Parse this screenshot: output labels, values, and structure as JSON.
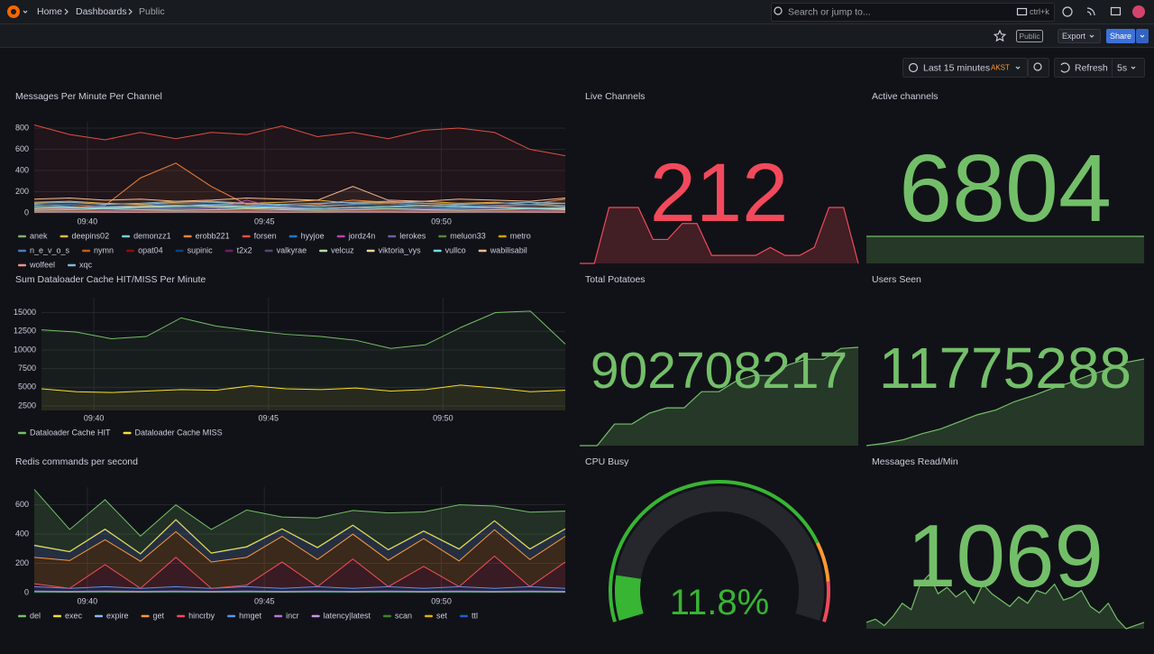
{
  "header": {
    "breadcrumbs": [
      "Home",
      "Dashboards",
      "Public"
    ],
    "search": "Search or jump to...",
    "shortcut": "ctrl+k",
    "badge": "Public",
    "export": "Export",
    "share": "Share"
  },
  "toolbar": {
    "time_range": "Last 15 minutes",
    "timezone": "AKST",
    "refresh": "Refresh",
    "interval": "5s"
  },
  "panels": [
    {
      "type": "timeseries",
      "title": "Messages Per Minute Per Channel",
      "x": [
        38.5,
        39.5,
        40.5,
        41.5,
        42.5,
        43.5,
        44.5,
        45.5,
        46.5,
        47.5,
        48.5,
        49.5,
        50.5,
        51.5,
        52.5,
        53.5
      ],
      "xlim": [
        38.5,
        53.5
      ],
      "xticks": [
        {
          "value": 40,
          "label": "09:40"
        },
        {
          "value": 45,
          "label": "09:45"
        },
        {
          "value": 50,
          "label": "09:50"
        }
      ],
      "ylim": [
        0,
        860
      ],
      "yticks": [
        0,
        200,
        400,
        600,
        800
      ],
      "stacked": false,
      "series": [
        {
          "name": "anek",
          "color": "#7EB26D",
          "values": [
            30,
            20,
            25,
            30,
            20,
            25,
            30,
            35,
            25,
            30,
            30,
            20,
            25,
            30,
            25,
            30
          ]
        },
        {
          "name": "deepins02",
          "color": "#EAB839",
          "values": [
            100,
            110,
            90,
            80,
            100,
            110,
            90,
            100,
            120,
            90,
            100,
            110,
            90,
            100,
            80,
            90
          ]
        },
        {
          "name": "demonzz1",
          "color": "#6ED0E0",
          "values": [
            80,
            60,
            50,
            70,
            60,
            80,
            90,
            70,
            60,
            80,
            90,
            70,
            60,
            70,
            80,
            60
          ]
        },
        {
          "name": "erobb221",
          "color": "#EF843C",
          "values": [
            60,
            50,
            70,
            330,
            470,
            250,
            80,
            60,
            80,
            120,
            100,
            90,
            70,
            60,
            80,
            130
          ]
        },
        {
          "name": "forsen",
          "color": "#E24D42",
          "values": [
            830,
            740,
            690,
            760,
            700,
            760,
            740,
            820,
            720,
            760,
            700,
            780,
            800,
            760,
            600,
            540
          ]
        },
        {
          "name": "hyyjoe",
          "color": "#1F78C1",
          "values": [
            40,
            50,
            40,
            30,
            40,
            50,
            40,
            30,
            40,
            50,
            40,
            30,
            40,
            50,
            40,
            30
          ]
        },
        {
          "name": "jordz4n",
          "color": "#BA43A9",
          "values": [
            20,
            30,
            20,
            25,
            30,
            20,
            120,
            40,
            30,
            25,
            30,
            20,
            25,
            30,
            20,
            25
          ]
        },
        {
          "name": "lerokes",
          "color": "#705DA0",
          "values": [
            50,
            40,
            60,
            50,
            40,
            50,
            60,
            50,
            40,
            50,
            60,
            40,
            50,
            60,
            50,
            40
          ]
        },
        {
          "name": "meluon33",
          "color": "#508642",
          "values": [
            10,
            15,
            10,
            12,
            10,
            15,
            12,
            10,
            15,
            10,
            12,
            15,
            10,
            12,
            10,
            15
          ]
        },
        {
          "name": "metro",
          "color": "#CCA300",
          "values": [
            5,
            8,
            5,
            6,
            8,
            5,
            6,
            8,
            5,
            6,
            8,
            5,
            6,
            8,
            5,
            6
          ]
        },
        {
          "name": "n_e_v_o_s",
          "color": "#447EBC",
          "values": [
            70,
            80,
            60,
            70,
            90,
            80,
            70,
            60,
            70,
            80,
            90,
            70,
            60,
            70,
            80,
            70
          ]
        },
        {
          "name": "nymn",
          "color": "#C15C17",
          "values": [
            20,
            25,
            30,
            20,
            25,
            30,
            20,
            25,
            30,
            20,
            25,
            30,
            20,
            25,
            30,
            20
          ]
        },
        {
          "name": "opat04",
          "color": "#890F02",
          "values": [
            15,
            20,
            15,
            10,
            15,
            20,
            15,
            10,
            15,
            20,
            15,
            10,
            15,
            20,
            15,
            10
          ]
        },
        {
          "name": "supinic",
          "color": "#0A437C",
          "values": [
            5,
            5,
            6,
            5,
            5,
            6,
            5,
            5,
            6,
            5,
            5,
            6,
            5,
            5,
            6,
            5
          ]
        },
        {
          "name": "t2x2",
          "color": "#6D1F62",
          "values": [
            30,
            35,
            30,
            25,
            30,
            35,
            30,
            25,
            30,
            35,
            30,
            25,
            30,
            35,
            30,
            25
          ]
        },
        {
          "name": "valkyrae",
          "color": "#584477",
          "values": [
            12,
            14,
            12,
            10,
            12,
            14,
            12,
            10,
            12,
            14,
            12,
            10,
            12,
            14,
            12,
            10
          ]
        },
        {
          "name": "velcuz",
          "color": "#B7DBAB",
          "values": [
            25,
            30,
            40,
            30,
            25,
            30,
            40,
            30,
            25,
            30,
            40,
            30,
            25,
            30,
            40,
            30
          ]
        },
        {
          "name": "viktoria_vys",
          "color": "#F4D598",
          "values": [
            40,
            45,
            50,
            60,
            70,
            60,
            50,
            45,
            40,
            50,
            60,
            70,
            60,
            50,
            45,
            40
          ]
        },
        {
          "name": "vullco",
          "color": "#70DBED",
          "values": [
            60,
            50,
            40,
            50,
            60,
            70,
            60,
            50,
            40,
            50,
            60,
            70,
            60,
            50,
            40,
            50
          ]
        },
        {
          "name": "wabilisabil",
          "color": "#F9BA8F",
          "values": [
            130,
            140,
            120,
            130,
            110,
            120,
            140,
            130,
            120,
            250,
            120,
            110,
            130,
            120,
            110,
            140
          ]
        },
        {
          "name": "wolfeel",
          "color": "#F29191",
          "values": [
            8,
            10,
            8,
            6,
            8,
            10,
            8,
            6,
            8,
            10,
            8,
            6,
            8,
            10,
            8,
            6
          ]
        },
        {
          "name": "xqc",
          "color": "#82B5D8",
          "values": [
            90,
            100,
            80,
            90,
            110,
            100,
            90,
            80,
            90,
            100,
            110,
            90,
            80,
            90,
            100,
            90
          ]
        }
      ]
    },
    {
      "type": "stat",
      "title": "Live Channels",
      "value": 212,
      "color": "#F2495C",
      "sparkline": [
        205,
        205,
        212,
        212,
        212,
        208,
        208,
        210,
        210,
        206,
        206,
        206,
        206,
        207,
        206,
        206,
        207,
        212,
        212,
        205
      ]
    },
    {
      "type": "stat",
      "title": "Active channels",
      "value": 6804,
      "color": "#73BF69",
      "sparkline": [
        6804,
        6804,
        6804,
        6804,
        6804,
        6804,
        6804,
        6804,
        6804,
        6804
      ]
    },
    {
      "type": "timeseries",
      "title": "Sum Dataloader Cache HIT/MISS Per Minute",
      "x": [
        38.5,
        39.5,
        40.5,
        41.5,
        42.5,
        43.5,
        44.5,
        45.5,
        46.5,
        47.5,
        48.5,
        49.5,
        50.5,
        51.5,
        52.5,
        53.5
      ],
      "xlim": [
        38.5,
        53.5
      ],
      "xticks": [
        {
          "value": 40,
          "label": "09:40"
        },
        {
          "value": 45,
          "label": "09:45"
        },
        {
          "value": 50,
          "label": "09:50"
        }
      ],
      "ylim": [
        1900,
        17000
      ],
      "yticks": [
        2500,
        5000,
        7500,
        10000,
        12500,
        15000
      ],
      "stacked": false,
      "series": [
        {
          "name": "Dataloader Cache HIT",
          "color": "#73BF69",
          "values": [
            12700,
            12400,
            11500,
            11800,
            14300,
            13200,
            12600,
            12100,
            11800,
            11300,
            10200,
            10700,
            13000,
            15000,
            15200,
            10800
          ]
        },
        {
          "name": "Dataloader Cache MISS",
          "color": "#FADE2A",
          "values": [
            4800,
            4400,
            4300,
            4500,
            4700,
            4600,
            5200,
            4800,
            4700,
            4900,
            4500,
            4700,
            5300,
            4900,
            4400,
            4600
          ]
        }
      ]
    },
    {
      "type": "stat",
      "title": "Total Potatoes",
      "value": 902708217,
      "color": "#73BF69",
      "sparkline": [
        902690000,
        902690000,
        902694000,
        902694000,
        902696000,
        902697000,
        902697000,
        902700000,
        902700000,
        902702000,
        902703000,
        902703000,
        902705000,
        902706000,
        902706000,
        902708000,
        902708217
      ]
    },
    {
      "type": "stat",
      "title": "Users Seen",
      "value": 11775288,
      "color": "#73BF69",
      "sparkline": [
        11768000,
        11768200,
        11768500,
        11769000,
        11769400,
        11770000,
        11770600,
        11771000,
        11771700,
        11772200,
        11772800,
        11773300,
        11773900,
        11774400,
        11775000,
        11775288
      ]
    },
    {
      "type": "timeseries",
      "title": "Redis commands per second",
      "x": [
        38.5,
        39.5,
        40.5,
        41.5,
        42.5,
        43.5,
        44.5,
        45.5,
        46.5,
        47.5,
        48.5,
        49.5,
        50.5,
        51.5,
        52.5,
        53.5
      ],
      "xlim": [
        38.5,
        53.5
      ],
      "xticks": [
        {
          "value": 40,
          "label": "09:40"
        },
        {
          "value": 45,
          "label": "09:45"
        },
        {
          "value": 50,
          "label": "09:50"
        }
      ],
      "ylim": [
        0,
        720
      ],
      "yticks": [
        0,
        200,
        400,
        600
      ],
      "stacked": true,
      "series": [
        {
          "name": "del",
          "color": "#73BF69",
          "values": [
            380,
            150,
            200,
            120,
            100,
            160,
            250,
            80,
            200,
            100,
            250,
            130,
            300,
            100,
            250,
            120
          ]
        },
        {
          "name": "exec",
          "color": "#FADE2A",
          "values": [
            3,
            2,
            3,
            2,
            3,
            2,
            3,
            2,
            3,
            2,
            3,
            2,
            3,
            2,
            3,
            2
          ]
        },
        {
          "name": "expire",
          "color": "#8AB8FF",
          "values": [
            80,
            60,
            70,
            50,
            80,
            60,
            70,
            50,
            80,
            60,
            70,
            50,
            80,
            60,
            70,
            50
          ]
        },
        {
          "name": "get",
          "color": "#FF9830",
          "values": [
            180,
            190,
            170,
            185,
            175,
            180,
            190,
            175,
            185,
            170,
            180,
            190,
            175,
            180,
            185,
            175
          ]
        },
        {
          "name": "hincrby",
          "color": "#F2495C",
          "values": [
            20,
            0,
            150,
            0,
            200,
            0,
            10,
            180,
            0,
            200,
            0,
            150,
            0,
            220,
            0,
            180
          ]
        },
        {
          "name": "hmget",
          "color": "#5794F2",
          "values": [
            30,
            20,
            30,
            20,
            30,
            20,
            30,
            20,
            30,
            20,
            30,
            20,
            30,
            20,
            30,
            20
          ]
        },
        {
          "name": "incr",
          "color": "#B877D9",
          "values": [
            2,
            2,
            2,
            2,
            2,
            2,
            2,
            2,
            2,
            2,
            2,
            2,
            2,
            2,
            2,
            2
          ]
        },
        {
          "name": "latency|latest",
          "color": "#CA95E5",
          "values": [
            1,
            1,
            1,
            1,
            1,
            1,
            1,
            1,
            1,
            1,
            1,
            1,
            1,
            1,
            1,
            1
          ]
        },
        {
          "name": "scan",
          "color": "#37872D",
          "values": [
            2,
            1,
            2,
            1,
            2,
            1,
            2,
            1,
            2,
            1,
            2,
            1,
            2,
            1,
            2,
            1
          ]
        },
        {
          "name": "set",
          "color": "#E0B400",
          "values": [
            4,
            3,
            4,
            3,
            4,
            3,
            4,
            3,
            4,
            3,
            4,
            3,
            4,
            3,
            4,
            3
          ]
        },
        {
          "name": "ttl",
          "color": "#1F60C4",
          "values": [
            2,
            2,
            2,
            2,
            2,
            2,
            2,
            2,
            2,
            2,
            2,
            2,
            2,
            2,
            2,
            2
          ]
        }
      ]
    },
    {
      "type": "gauge",
      "title": "CPU Busy",
      "value": 11.8,
      "value_label": "11.8%",
      "min": 0,
      "max": 100,
      "color": "#37B533",
      "thresholds": [
        {
          "value": 80,
          "color": "#FF9830"
        },
        {
          "value": 90,
          "color": "#F2495C"
        }
      ]
    },
    {
      "type": "stat",
      "title": "Messages Read/Min",
      "value": 1069,
      "color": "#73BF69",
      "sparkline": [
        1000,
        1010,
        990,
        1020,
        1060,
        1040,
        1120,
        1150,
        1090,
        1110,
        1080,
        1100,
        1060,
        1120,
        1090,
        1070,
        1050,
        1080,
        1060,
        1100,
        1090,
        1120,
        1070,
        1080,
        1100,
        1050,
        1030,
        1060,
        1010,
        980,
        990,
        1000
      ]
    }
  ]
}
